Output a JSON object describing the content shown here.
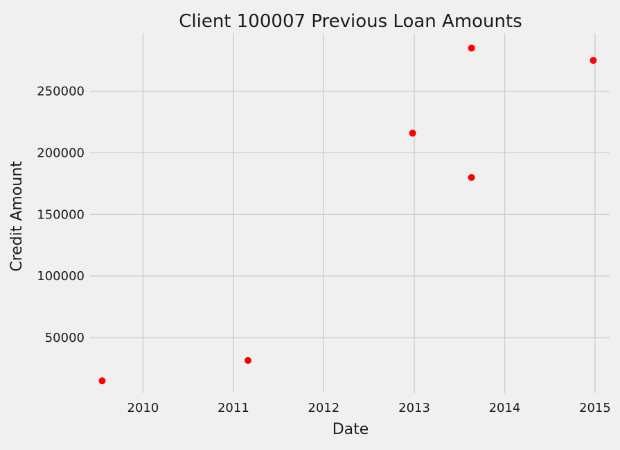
{
  "chart_data": {
    "type": "scatter",
    "title": "Client 100007 Previous Loan Amounts",
    "xlabel": "Date",
    "ylabel": "Credit Amount",
    "x_ticks": [
      "2010",
      "2011",
      "2012",
      "2013",
      "2014",
      "2015"
    ],
    "y_ticks": [
      50000,
      100000,
      150000,
      200000,
      250000
    ],
    "xlim": [
      "2009-06-01",
      "2015-03-01"
    ],
    "ylim": [
      5000,
      297000
    ],
    "grid": true,
    "point_color": "#ff0000",
    "background_color": "#f0f0f0",
    "points": [
      {
        "x": "2009-07-20",
        "y": 15000
      },
      {
        "x": "2011-03-01",
        "y": 31500
      },
      {
        "x": "2012-12-25",
        "y": 216000
      },
      {
        "x": "2013-08-20",
        "y": 180000
      },
      {
        "x": "2013-08-20",
        "y": 285000
      },
      {
        "x": "2014-12-25",
        "y": 275000
      }
    ]
  }
}
